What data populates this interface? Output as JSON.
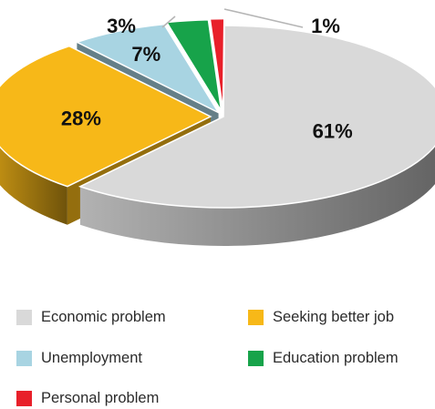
{
  "chart_data": {
    "type": "pie",
    "style": "3d-exploded",
    "slices": [
      {
        "name": "Economic problem",
        "value": 61,
        "label": "61%",
        "color": "#d9d9d9"
      },
      {
        "name": "Seeking better job",
        "value": 28,
        "label": "28%",
        "color": "#f7b818"
      },
      {
        "name": "Unemployment",
        "value": 7,
        "label": "7%",
        "color": "#a8d4e2"
      },
      {
        "name": "Education problem",
        "value": 3,
        "label": "3%",
        "color": "#17a34a"
      },
      {
        "name": "Personal problem",
        "value": 1,
        "label": "1%",
        "color": "#e8202a"
      }
    ],
    "legend_position": "bottom"
  },
  "legend": {
    "items": [
      {
        "label": "Economic problem",
        "color": "#d9d9d9"
      },
      {
        "label": "Seeking better job",
        "color": "#f7b818"
      },
      {
        "label": "Unemployment",
        "color": "#a8d4e2"
      },
      {
        "label": "Education problem",
        "color": "#17a34a"
      },
      {
        "label": "Personal problem",
        "color": "#e8202a"
      }
    ]
  }
}
